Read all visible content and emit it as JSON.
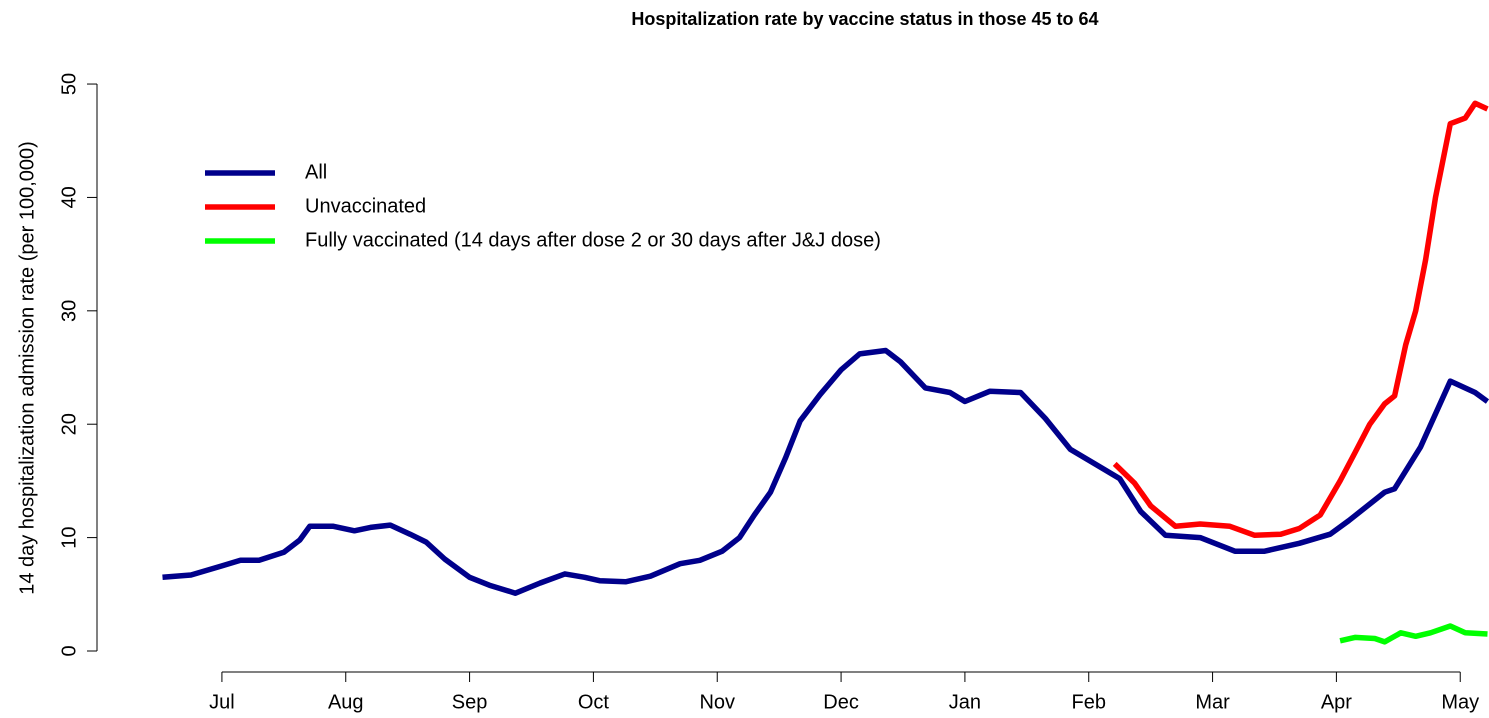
{
  "chart_data": {
    "type": "line",
    "title": "Hospitalization rate by vaccine status in those 45 to 64",
    "y_label": "14 day hospitalization admission rate (per 100,000)",
    "xlim": [
      -0.5,
      10.2
    ],
    "xticks": [
      {
        "value": 0,
        "label": "Jul"
      },
      {
        "value": 1,
        "label": "Aug"
      },
      {
        "value": 2,
        "label": "Sep"
      },
      {
        "value": 3,
        "label": "Oct"
      },
      {
        "value": 4,
        "label": "Nov"
      },
      {
        "value": 5,
        "label": "Dec"
      },
      {
        "value": 6,
        "label": "Jan"
      },
      {
        "value": 7,
        "label": "Feb"
      },
      {
        "value": 8,
        "label": "Mar"
      },
      {
        "value": 9,
        "label": "Apr"
      },
      {
        "value": 10,
        "label": "May"
      }
    ],
    "ylim": [
      -1.5,
      51
    ],
    "yticks": [
      0,
      10,
      20,
      30,
      40,
      50
    ],
    "legend": "top-left",
    "series": [
      {
        "name": "All",
        "color": "#00008b",
        "x": [
          -0.48,
          -0.25,
          0,
          0.15,
          0.3,
          0.5,
          0.63,
          0.71,
          0.9,
          1.07,
          1.2,
          1.36,
          1.52,
          1.65,
          1.8,
          2.0,
          2.16,
          2.37,
          2.57,
          2.77,
          2.93,
          3.05,
          3.26,
          3.46,
          3.7,
          3.86,
          4.04,
          4.18,
          4.3,
          4.43,
          4.55,
          4.67,
          4.83,
          5.0,
          5.15,
          5.36,
          5.48,
          5.68,
          5.88,
          6.0,
          6.2,
          6.45,
          6.65,
          6.85,
          7.05,
          7.25,
          7.42,
          7.62,
          7.9,
          8.18,
          8.42,
          8.7,
          8.95,
          9.1,
          9.39,
          9.47,
          9.68,
          9.92,
          10.12,
          10.22
        ],
        "values": [
          6.5,
          6.7,
          7.5,
          8.0,
          8.0,
          8.7,
          9.8,
          11.0,
          11.0,
          10.6,
          10.9,
          11.1,
          10.3,
          9.6,
          8.1,
          6.5,
          5.8,
          5.1,
          6.0,
          6.8,
          6.5,
          6.2,
          6.1,
          6.6,
          7.7,
          8.0,
          8.8,
          10.0,
          12.0,
          14.0,
          17.0,
          20.3,
          22.6,
          24.8,
          26.2,
          26.5,
          25.5,
          23.2,
          22.8,
          22.0,
          22.9,
          22.8,
          20.5,
          17.8,
          16.5,
          15.2,
          12.3,
          10.2,
          10.0,
          8.8,
          8.8,
          9.5,
          10.3,
          11.5,
          14.0,
          14.3,
          18.0,
          23.8,
          22.8,
          22.0
        ]
      },
      {
        "name": "Unvaccinated",
        "color": "#ff0000",
        "x": [
          7.21,
          7.37,
          7.5,
          7.7,
          7.9,
          8.14,
          8.34,
          8.55,
          8.7,
          8.87,
          9.03,
          9.15,
          9.27,
          9.39,
          9.47,
          9.56,
          9.64,
          9.72,
          9.8,
          9.92,
          10.04,
          10.12,
          10.22
        ],
        "values": [
          16.5,
          14.8,
          12.8,
          11.0,
          11.2,
          11.0,
          10.2,
          10.3,
          10.8,
          12.0,
          15.0,
          17.5,
          20.0,
          21.8,
          22.5,
          27.0,
          30.0,
          34.5,
          40.0,
          46.5,
          47.0,
          48.3,
          47.8
        ]
      },
      {
        "name": "Fully vaccinated (14 days after dose 2 or 30 days after J&J dose)",
        "color": "#00ff00",
        "x": [
          9.03,
          9.15,
          9.31,
          9.39,
          9.52,
          9.64,
          9.76,
          9.92,
          10.04,
          10.22
        ],
        "values": [
          0.9,
          1.2,
          1.1,
          0.8,
          1.6,
          1.3,
          1.6,
          2.2,
          1.6,
          1.5
        ]
      }
    ]
  }
}
